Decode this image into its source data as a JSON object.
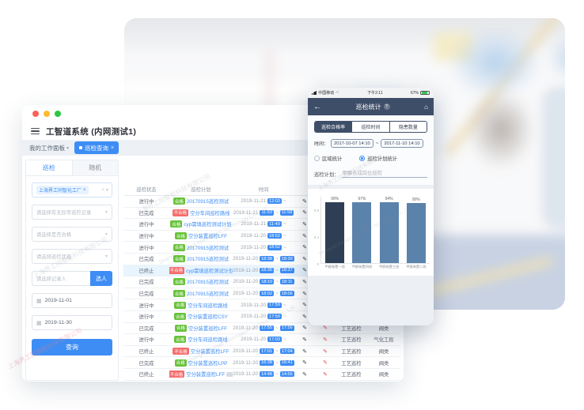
{
  "watermark": {
    "cn": "上海界工同智能科技有限公司",
    "en": "Shanghai Inroad Information Technology Co., Ltd."
  },
  "icons": {
    "dropdown": "▾",
    "close": "×",
    "edit": "✎",
    "calendar": "▦",
    "back": "←",
    "home": "⌂",
    "help": "?",
    "tilde": "~",
    "wifi": "◠"
  },
  "colors": {
    "accent": "#3d8df5",
    "green": "#67c23a",
    "red": "#f56c6c",
    "navbar": "#3f4e68"
  },
  "desktop": {
    "app_title": "工智道系统 (内网测试1)",
    "workspace_tab": "我的工作面板",
    "active_tab": "巡检查询",
    "sidebar": {
      "tab_inspection": "巡检",
      "tab_random": "随机",
      "company_tag": "上海界工同智化工厂",
      "select_abnormal": "请选择有无异常巡检记录",
      "select_qualified": "请选择是否合格",
      "select_status": "请选择巡检状态",
      "person_placeholder": "请选择记录人",
      "person_button": "选人",
      "date_from": "2019-11-01",
      "date_to": "2019-11-30",
      "search_button": "查询"
    },
    "table": {
      "headers": [
        "巡检状态",
        "巡检计划",
        "时间"
      ],
      "rows": [
        {
          "status": "进行中",
          "result": "合格",
          "plan": "20170915巡检测试",
          "date": "2019-11-21",
          "start": "12:03",
          "end": ""
        },
        {
          "status": "已完成",
          "result": "不合格",
          "plan": "空分车间巡检路线",
          "date": "2019-11-21",
          "start": "11:53",
          "end": "11:58"
        },
        {
          "status": "进行中",
          "result": "合格",
          "plan": "cyp需填巡检测试计划",
          "date": "2019-11-21",
          "start": "11:49",
          "end": ""
        },
        {
          "status": "进行中",
          "result": "合格",
          "plan": "空分装置巡检LFF",
          "date": "2019-11-20",
          "start": "18:52",
          "end": ""
        },
        {
          "status": "进行中",
          "result": "合格",
          "plan": "20170915巡检测试",
          "date": "2019-11-20",
          "start": "18:52",
          "end": ""
        },
        {
          "status": "已完成",
          "result": "合格",
          "plan": "20170915巡检测试",
          "date": "2019-11-20",
          "start": "18:38",
          "end": "18:39"
        },
        {
          "status": "已终止",
          "result": "不合格",
          "plan": "cyp需填巡检测试计划",
          "date": "2019-11-20",
          "start": "18:35",
          "end": "18:37",
          "highlighted": true
        },
        {
          "status": "已完成",
          "result": "合格",
          "plan": "20170915巡检测试",
          "date": "2019-11-20",
          "start": "18:10",
          "end": "18:11"
        },
        {
          "status": "已完成",
          "result": "合格",
          "plan": "20170915巡检测试",
          "date": "2019-11-20",
          "start": "18:02",
          "end": "18:06"
        },
        {
          "status": "进行中",
          "result": "合格",
          "plan": "空分车间巡检路线",
          "date": "2019-11-20",
          "start": "17:59",
          "end": ""
        },
        {
          "status": "进行中",
          "result": "合格",
          "plan": "空分装置巡检CSY",
          "date": "2019-11-20",
          "start": "17:59",
          "end": ""
        },
        {
          "status": "已完成",
          "result": "合格",
          "plan": "空分装置巡检LFF",
          "date": "2019-11-20",
          "start": "17:55",
          "end": "17:56",
          "type": "工艺巡检",
          "area": "阀类"
        },
        {
          "status": "进行中",
          "result": "合格",
          "plan": "空分车间巡检路线",
          "date": "2019-11-20",
          "start": "17:03",
          "end": "",
          "type": "工艺巡检",
          "area": "气化工段"
        },
        {
          "status": "已终止",
          "result": "不合格",
          "plan": "空分装置巡检LFF",
          "date": "2019-11-20",
          "start": "17:01",
          "end": "17:04",
          "type": "工艺巡检",
          "area": "阀类"
        },
        {
          "status": "已完成",
          "result": "合格",
          "plan": "空分装置巡检LPP",
          "date": "2019-11-20",
          "start": "16:38",
          "end": "16:41",
          "type": "工艺巡检",
          "area": "阀类"
        },
        {
          "status": "已终止",
          "result": "不合格",
          "plan": "空分装置巡检LFF",
          "date": "2019-11-20",
          "start": "14:48",
          "end": "14:55",
          "type": "工艺巡检",
          "area": "阀类",
          "extra_badge": true
        }
      ]
    }
  },
  "phone": {
    "status": {
      "carrier": "中国移动",
      "time": "下午2:11",
      "battery": "67%"
    },
    "nav_title": "巡检统计",
    "tabs": [
      "巡检合格率",
      "巡检时间",
      "隐患数量"
    ],
    "time_label": "时间：",
    "time_from": "2017-10-07 14:10",
    "time_to": "2017-11-10 14:10",
    "radio_area": "区域统计",
    "radio_plan": "巡检计划统计",
    "plan_label": "巡检计划：",
    "plan_value": "甲醇合成岗位巡检"
  },
  "chart_data": {
    "type": "bar",
    "title": "",
    "categories": [
      "甲醇装置一线",
      "甲醇装置四线",
      "甲醇装置三线",
      "甲醇装置二线"
    ],
    "values": [
      0.99,
      0.97,
      0.94,
      0.9
    ],
    "labels": [
      "99%",
      "97%",
      "94%",
      "90%"
    ],
    "ylim": [
      0,
      1
    ],
    "yticks": [
      "0",
      "0.4",
      "0.8"
    ],
    "bar_colors": [
      "#2e3f55",
      "#5b82ab",
      "#5b82ab",
      "#5b82ab"
    ],
    "grid": false,
    "legend": null
  }
}
